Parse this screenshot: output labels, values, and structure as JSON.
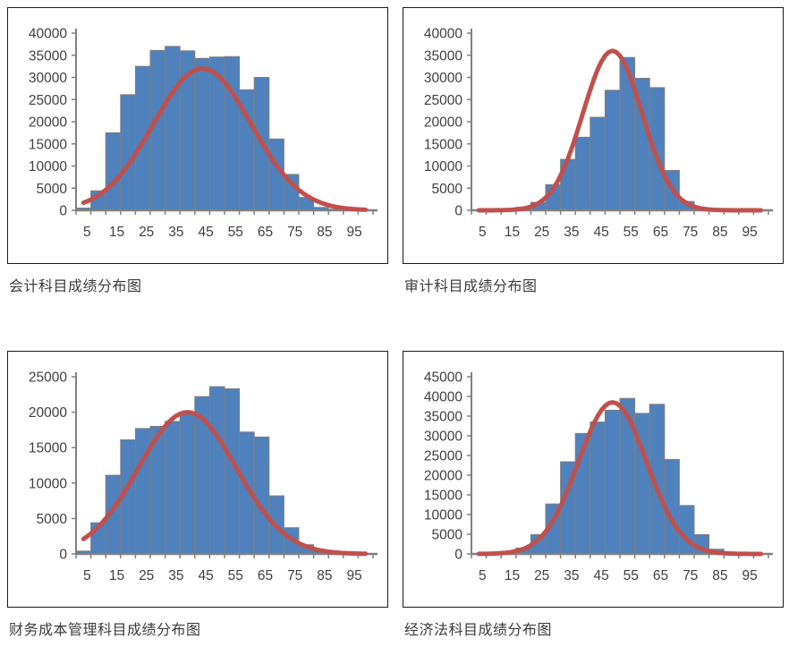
{
  "colors": {
    "bar_fill": "#4F81BD",
    "bar_stroke": "#7F7F7F",
    "curve": "#C0504D",
    "axis": "#808080",
    "tick_label": "#3f3f3f",
    "caption": "#3b3b3b",
    "chart_border": "#1a1a1a",
    "background": "#ffffff"
  },
  "chart_data": [
    {
      "type": "bar",
      "subtype": "histogram_with_normal_curve",
      "caption": "会计科目成绩分布图",
      "x": [
        5,
        10,
        15,
        20,
        25,
        30,
        35,
        40,
        45,
        50,
        55,
        60,
        65,
        70,
        75,
        80,
        85,
        90,
        95,
        100
      ],
      "values": [
        500,
        4400,
        17500,
        26100,
        32500,
        36100,
        37000,
        36000,
        34300,
        34600,
        34700,
        27200,
        30000,
        16100,
        8100,
        2900,
        650,
        250,
        80,
        30
      ],
      "x_tick_labels": [
        "5",
        "15",
        "25",
        "35",
        "45",
        "55",
        "65",
        "75",
        "85",
        "95"
      ],
      "y_tick_labels": [
        "0",
        "5000",
        "10000",
        "15000",
        "20000",
        "25000",
        "30000",
        "35000",
        "40000"
      ],
      "ylim": [
        0,
        40000
      ],
      "ytick_step": 5000,
      "grid": false,
      "legend": "none",
      "curve": {
        "mean": 45,
        "sigma": 16.5,
        "peak": 32000
      }
    },
    {
      "type": "bar",
      "subtype": "histogram_with_normal_curve",
      "caption": "审计科目成绩分布图",
      "x": [
        5,
        10,
        15,
        20,
        25,
        30,
        35,
        40,
        45,
        50,
        55,
        60,
        65,
        70,
        75,
        80,
        85,
        90,
        95,
        100
      ],
      "values": [
        0,
        100,
        350,
        700,
        1800,
        5800,
        11500,
        16500,
        21000,
        27100,
        34500,
        29800,
        27700,
        9000,
        2000,
        400,
        80,
        0,
        0,
        0
      ],
      "x_tick_labels": [
        "5",
        "15",
        "25",
        "35",
        "45",
        "55",
        "65",
        "75",
        "85",
        "95"
      ],
      "y_tick_labels": [
        "0",
        "5000",
        "10000",
        "15000",
        "20000",
        "25000",
        "30000",
        "35000",
        "40000"
      ],
      "ylim": [
        0,
        40000
      ],
      "ytick_step": 5000,
      "grid": false,
      "legend": "none",
      "curve": {
        "mean": 50,
        "sigma": 10,
        "peak": 36000
      }
    },
    {
      "type": "bar",
      "subtype": "histogram_with_normal_curve",
      "caption": "财务成本管理科目成绩分布图",
      "x": [
        5,
        10,
        15,
        20,
        25,
        30,
        35,
        40,
        45,
        50,
        55,
        60,
        65,
        70,
        75,
        80,
        85,
        90,
        95,
        100
      ],
      "values": [
        400,
        4400,
        11100,
        16100,
        17700,
        18000,
        18700,
        19900,
        22200,
        23600,
        23300,
        17200,
        16500,
        8200,
        3700,
        1300,
        350,
        100,
        0,
        0
      ],
      "x_tick_labels": [
        "5",
        "15",
        "25",
        "35",
        "45",
        "55",
        "65",
        "75",
        "85",
        "95"
      ],
      "y_tick_labels": [
        "0",
        "5000",
        "10000",
        "15000",
        "20000",
        "25000"
      ],
      "ylim": [
        0,
        25000
      ],
      "ytick_step": 5000,
      "grid": false,
      "legend": "none",
      "curve": {
        "mean": 40,
        "sigma": 16.5,
        "peak": 20000
      }
    },
    {
      "type": "bar",
      "subtype": "histogram_with_normal_curve",
      "caption": "经济法科目成绩分布图",
      "x": [
        5,
        10,
        15,
        20,
        25,
        30,
        35,
        40,
        45,
        50,
        55,
        60,
        65,
        70,
        75,
        80,
        85,
        90,
        95,
        100
      ],
      "values": [
        0,
        200,
        700,
        1500,
        4900,
        12700,
        23400,
        30600,
        33500,
        36500,
        39500,
        35700,
        38000,
        24000,
        12300,
        4900,
        1200,
        150,
        0,
        0
      ],
      "x_tick_labels": [
        "5",
        "15",
        "25",
        "35",
        "45",
        "55",
        "65",
        "75",
        "85",
        "95"
      ],
      "y_tick_labels": [
        "0",
        "5000",
        "10000",
        "15000",
        "20000",
        "25000",
        "30000",
        "35000",
        "40000",
        "45000"
      ],
      "ylim": [
        0,
        45000
      ],
      "ytick_step": 5000,
      "grid": false,
      "legend": "none",
      "curve": {
        "mean": 50,
        "sigma": 11.5,
        "peak": 38500
      }
    }
  ]
}
